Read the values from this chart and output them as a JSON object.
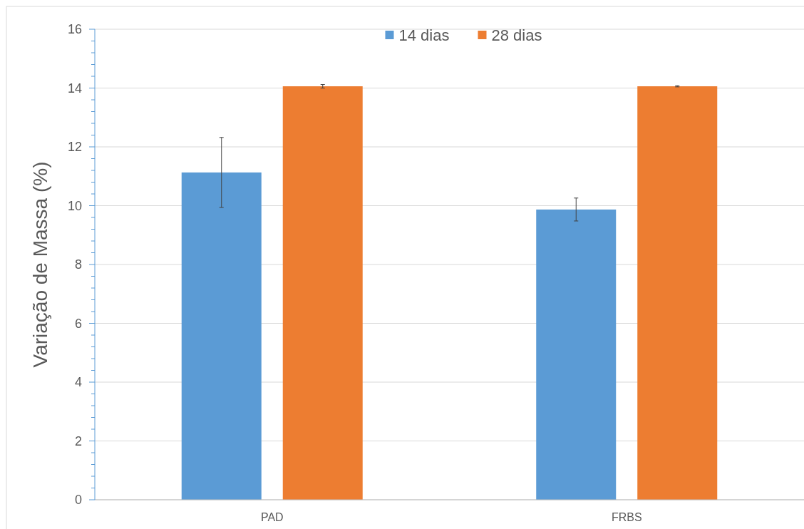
{
  "chart_data": {
    "type": "bar",
    "ylabel": "Variação de Massa (%)",
    "categories": [
      "PAD",
      "FRBS"
    ],
    "series": [
      {
        "name": "14 dias",
        "color": "#5b9bd5",
        "values": [
          11.13,
          9.87
        ],
        "errors": [
          1.19,
          0.39
        ]
      },
      {
        "name": "28 dias",
        "color": "#ed7d31",
        "values": [
          14.06,
          14.06
        ],
        "errors": [
          0.06,
          0.02
        ]
      }
    ],
    "ylim": [
      0,
      16
    ],
    "yticks": [
      0,
      {
        "value": 0.4,
        "label": null
      },
      {
        "value": 0.8,
        "label": null
      },
      {
        "value": 1.2,
        "label": null
      },
      {
        "value": 1.6,
        "label": null
      },
      2,
      {
        "value": 2.4,
        "label": null
      },
      {
        "value": 2.8,
        "label": null
      },
      {
        "value": 3.2,
        "label": null
      },
      {
        "value": 3.6,
        "label": null
      },
      4,
      {
        "value": 4.4,
        "label": null
      },
      {
        "value": 4.8,
        "label": null
      },
      {
        "value": 5.2,
        "label": null
      },
      {
        "value": 5.6,
        "label": null
      },
      6,
      {
        "value": 6.4,
        "label": null
      },
      {
        "value": 6.8,
        "label": null
      },
      {
        "value": 7.2,
        "label": null
      },
      {
        "value": 7.6,
        "label": null
      },
      8,
      {
        "value": 8.4,
        "label": null
      },
      {
        "value": 8.8,
        "label": null
      },
      {
        "value": 9.2,
        "label": null
      },
      {
        "value": 9.6,
        "label": null
      },
      10,
      {
        "value": 10.4,
        "label": null
      },
      {
        "value": 10.8,
        "label": null
      },
      {
        "value": 11.2,
        "label": null
      },
      {
        "value": 11.6,
        "label": null
      },
      12,
      {
        "value": 12.4,
        "label": null
      },
      {
        "value": 12.8,
        "label": null
      },
      {
        "value": 13.2,
        "label": null
      },
      {
        "value": 13.6,
        "label": null
      },
      14,
      {
        "value": 14.4,
        "label": null
      },
      {
        "value": 14.8,
        "label": null
      },
      {
        "value": 15.2,
        "label": null
      },
      {
        "value": 15.6,
        "label": null
      },
      16
    ],
    "grid": "y",
    "legend": "top"
  }
}
